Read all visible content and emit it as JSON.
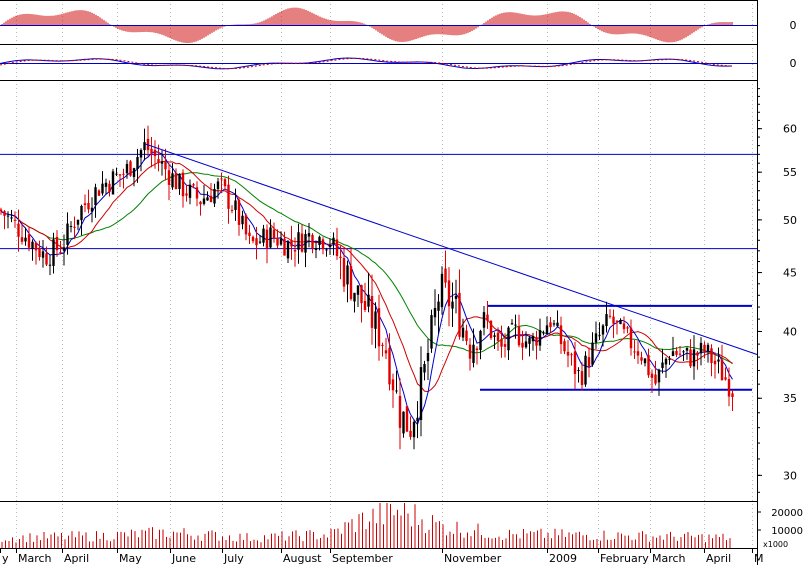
{
  "chart_data": {
    "type": "candlestick",
    "title": "",
    "price_axis": {
      "scale": "log",
      "range": [
        28.5,
        66
      ],
      "ticks": [
        "60",
        "55",
        "50",
        "45",
        "40",
        "35",
        "30"
      ]
    },
    "histogram_panel": {
      "zero_label": "0"
    },
    "oscillator_panel": {
      "zero_label": "0"
    },
    "volume_panel": {
      "ticks": [
        "20000",
        "10000"
      ],
      "unit_label": "x1000",
      "max": 25000
    },
    "months": [
      "y",
      "March",
      "April",
      "May",
      "June",
      "July",
      "August",
      "September",
      "November",
      "2009",
      "February",
      "March",
      "April",
      "M"
    ],
    "horizontal_lines": [
      {
        "name": "upper-resistance",
        "value": 57
      },
      {
        "name": "lower-support",
        "value": 47.2
      },
      {
        "name": "channel-top",
        "value": 42.1
      },
      {
        "name": "channel-bottom",
        "value": 35.6
      }
    ],
    "trendline": {
      "from": {
        "t": 145,
        "value": 58.2
      },
      "to": {
        "t": 757,
        "value": 38.2
      }
    },
    "price_path": [
      {
        "t": 0,
        "value": 51
      },
      {
        "t": 20,
        "value": 49
      },
      {
        "t": 45,
        "value": 46.5
      },
      {
        "t": 62,
        "value": 47.5
      },
      {
        "t": 80,
        "value": 51
      },
      {
        "t": 100,
        "value": 53.5
      },
      {
        "t": 125,
        "value": 55
      },
      {
        "t": 145,
        "value": 58
      },
      {
        "t": 160,
        "value": 56
      },
      {
        "t": 180,
        "value": 53.5
      },
      {
        "t": 200,
        "value": 52
      },
      {
        "t": 220,
        "value": 53.5
      },
      {
        "t": 235,
        "value": 51
      },
      {
        "t": 250,
        "value": 47.5
      },
      {
        "t": 270,
        "value": 48.5
      },
      {
        "t": 290,
        "value": 47.5
      },
      {
        "t": 310,
        "value": 48.5
      },
      {
        "t": 330,
        "value": 48
      },
      {
        "t": 345,
        "value": 45
      },
      {
        "t": 365,
        "value": 42
      },
      {
        "t": 385,
        "value": 39
      },
      {
        "t": 400,
        "value": 34
      },
      {
        "t": 410,
        "value": 33
      },
      {
        "t": 425,
        "value": 37
      },
      {
        "t": 440,
        "value": 43.5
      },
      {
        "t": 455,
        "value": 42
      },
      {
        "t": 470,
        "value": 39
      },
      {
        "t": 485,
        "value": 41
      },
      {
        "t": 500,
        "value": 38.5
      },
      {
        "t": 515,
        "value": 40
      },
      {
        "t": 530,
        "value": 39
      },
      {
        "t": 550,
        "value": 41
      },
      {
        "t": 565,
        "value": 38.5
      },
      {
        "t": 580,
        "value": 36.5
      },
      {
        "t": 595,
        "value": 39
      },
      {
        "t": 610,
        "value": 41
      },
      {
        "t": 625,
        "value": 39.5
      },
      {
        "t": 640,
        "value": 38.5
      },
      {
        "t": 655,
        "value": 36
      },
      {
        "t": 670,
        "value": 38.5
      },
      {
        "t": 690,
        "value": 38
      },
      {
        "t": 705,
        "value": 38.5
      },
      {
        "t": 720,
        "value": 37
      },
      {
        "t": 733,
        "value": 35.6
      }
    ],
    "volume_path": [
      {
        "t": 0,
        "value": 6000
      },
      {
        "t": 100,
        "value": 7000
      },
      {
        "t": 170,
        "value": 9000
      },
      {
        "t": 250,
        "value": 6000
      },
      {
        "t": 330,
        "value": 8000
      },
      {
        "t": 360,
        "value": 16000
      },
      {
        "t": 400,
        "value": 22000
      },
      {
        "t": 440,
        "value": 13000
      },
      {
        "t": 500,
        "value": 8000
      },
      {
        "t": 600,
        "value": 7500
      },
      {
        "t": 733,
        "value": 6000
      }
    ],
    "colors": {
      "up_candle": "#000000",
      "down_candle": "#e00000",
      "ma_short": "#0000cc",
      "ma_medium": "#d00000",
      "ma_long": "#008000",
      "lines": "#0000cc",
      "histogram": "#cc0000",
      "volume": "#cc0000",
      "vertical_grid": "#bbbbbb"
    }
  }
}
